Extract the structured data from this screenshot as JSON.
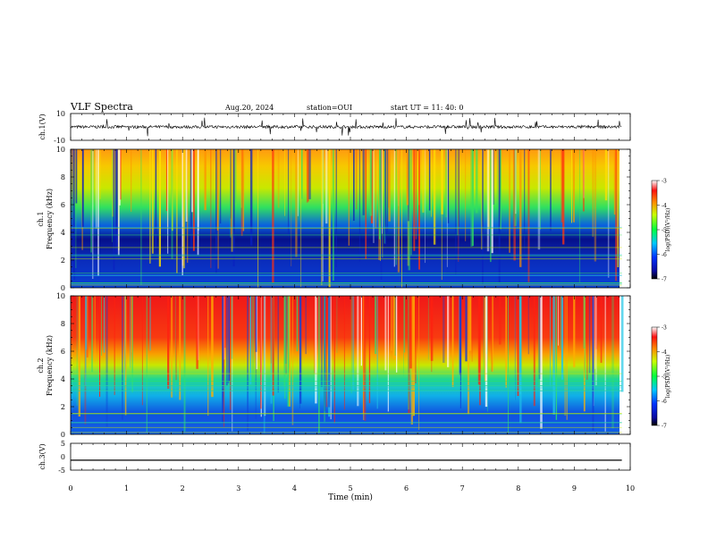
{
  "header": {
    "title": "VLF Spectra",
    "date": "Aug.20, 2024",
    "station": "station=OUI",
    "start": "start UT =  11: 40: 0"
  },
  "chart_data": [
    {
      "type": "line",
      "title": "",
      "ylabel": "ch.1(V)",
      "ylim": [
        -10,
        10
      ],
      "y_ticks": [
        "10",
        "-10"
      ],
      "baseline": 0
    },
    {
      "type": "heatmap",
      "ylabel": "ch.1\nFrequency (kHz)",
      "ylabel_lines": [
        "ch.1",
        "Frequency (kHz)"
      ],
      "ylim": [
        0,
        10
      ],
      "y_ticks": [
        "0",
        "2",
        "4",
        "6",
        "8",
        "10"
      ],
      "colorbar": {
        "label": "log(PSD)(V²/Hz)",
        "range": [
          -7,
          -3
        ],
        "ticks": [
          "-3",
          "-4",
          "-5",
          "-6",
          "-7"
        ]
      }
    },
    {
      "type": "heatmap",
      "ylabel": "ch.2\nFrequency (kHz)",
      "ylabel_lines": [
        "ch.2",
        "Frequency (kHz)"
      ],
      "ylim": [
        0,
        10
      ],
      "y_ticks": [
        "0",
        "2",
        "4",
        "6",
        "8",
        "10"
      ],
      "colorbar": {
        "label": "log(PSD)(V²/Hz)",
        "range": [
          -7,
          -3
        ],
        "ticks": [
          "-3",
          "-4",
          "-5",
          "-6",
          "-7"
        ]
      }
    },
    {
      "type": "line",
      "ylabel": "ch.3(V)",
      "ylim": [
        -5,
        5
      ],
      "y_ticks": [
        "5",
        "0",
        "-5"
      ],
      "values_constant": -1.3
    }
  ],
  "x_axis": {
    "label": "Time (min)",
    "range": [
      0,
      10
    ],
    "ticks": [
      "0",
      "1",
      "2",
      "3",
      "4",
      "5",
      "6",
      "7",
      "8",
      "9",
      "10"
    ],
    "data_end": 9.85
  }
}
